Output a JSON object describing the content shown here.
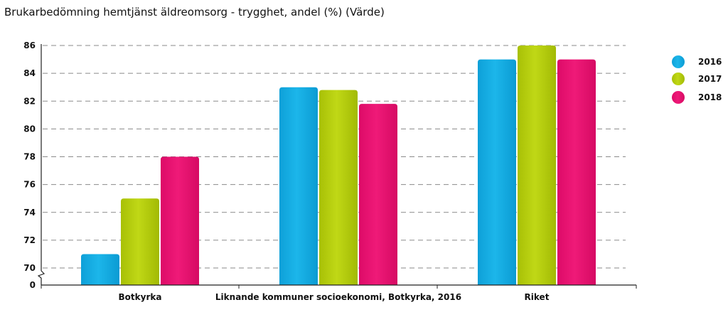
{
  "chart_data": {
    "type": "bar",
    "title": "Brukarbedömning hemtjänst äldreomsorg - trygghet, andel (%) (Värde)",
    "xlabel": "",
    "ylabel": "",
    "categories": [
      "Botkyrka",
      "Liknande kommuner socioekonomi, Botkyrka, 2016",
      "Riket"
    ],
    "series": [
      {
        "name": "2016",
        "color": "#13ace3",
        "values": [
          71,
          83,
          85
        ]
      },
      {
        "name": "2017",
        "color": "#b6cf0a",
        "values": [
          75,
          82.8,
          86
        ]
      },
      {
        "name": "2018",
        "color": "#e7106f",
        "values": [
          78,
          81.8,
          85
        ]
      }
    ],
    "ylim": [
      69,
      86
    ],
    "yticks": [
      70,
      72,
      74,
      76,
      78,
      80,
      82,
      84,
      86
    ],
    "axis_zero_label": "0",
    "axis_break": true,
    "grid": true,
    "legend_position": "right"
  }
}
